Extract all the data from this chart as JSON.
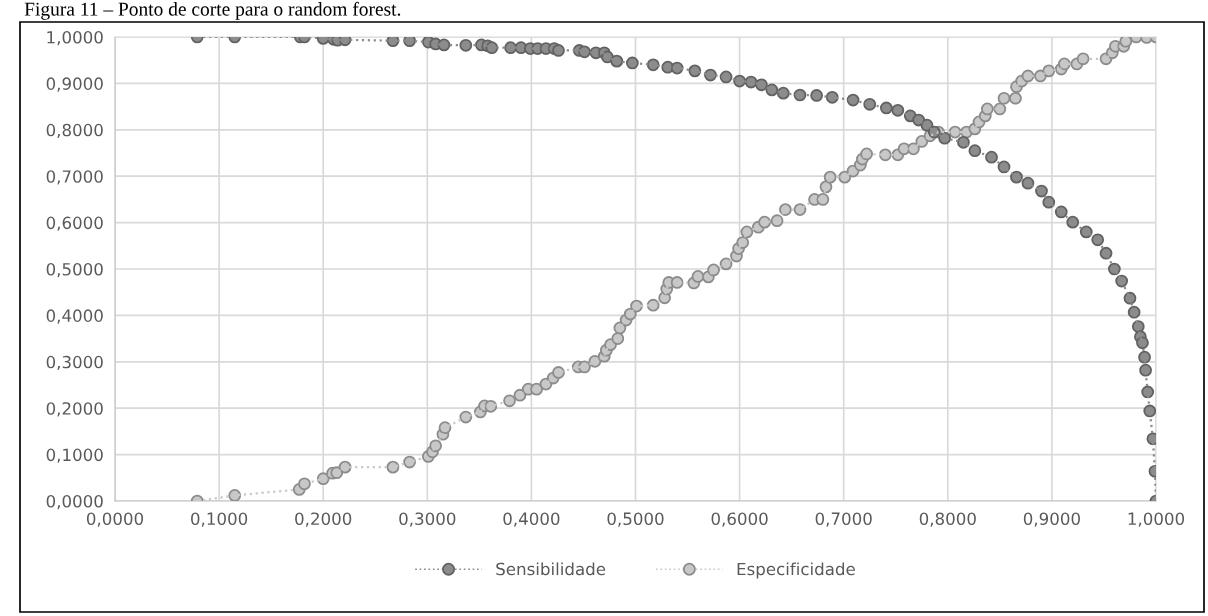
{
  "chart_data": {
    "type": "line",
    "title": "Figura 11 – Ponto de corte para o random forest.",
    "xlim": [
      0,
      1
    ],
    "ylim": [
      0,
      1
    ],
    "xticks": [
      {
        "value": 0,
        "label": "0,0000"
      },
      {
        "value": 0.1,
        "label": "0,1000"
      },
      {
        "value": 0.2,
        "label": "0,2000"
      },
      {
        "value": 0.3,
        "label": "0,3000"
      },
      {
        "value": 0.4,
        "label": "0,4000"
      },
      {
        "value": 0.5,
        "label": "0,5000"
      },
      {
        "value": 0.6,
        "label": "0,6000"
      },
      {
        "value": 0.7,
        "label": "0,7000"
      },
      {
        "value": 0.8,
        "label": "0,8000"
      },
      {
        "value": 0.9,
        "label": "0,9000"
      },
      {
        "value": 1,
        "label": "1,0000"
      }
    ],
    "yticks": [
      {
        "value": 0,
        "label": "0,0000"
      },
      {
        "value": 0.1,
        "label": "0,1000"
      },
      {
        "value": 0.2,
        "label": "0,2000"
      },
      {
        "value": 0.3,
        "label": "0,3000"
      },
      {
        "value": 0.4,
        "label": "0,4000"
      },
      {
        "value": 0.5,
        "label": "0,5000"
      },
      {
        "value": 0.6,
        "label": "0,6000"
      },
      {
        "value": 0.7,
        "label": "0,7000"
      },
      {
        "value": 0.8,
        "label": "0,8000"
      },
      {
        "value": 0.9,
        "label": "0,9000"
      },
      {
        "value": 1,
        "label": "1,0000"
      }
    ],
    "grid": true,
    "legend": "bottom",
    "marker": "circle",
    "line_style": "dotted",
    "series": [
      {
        "name": "Sensibilidade",
        "color": "#8c8c8c",
        "x": [
          0.079,
          0.115,
          0.178,
          0.182,
          0.2,
          0.21,
          0.214,
          0.221,
          0.267,
          0.283,
          0.301,
          0.308,
          0.316,
          0.337,
          0.352,
          0.358,
          0.362,
          0.38,
          0.39,
          0.399,
          0.406,
          0.414,
          0.422,
          0.426,
          0.446,
          0.451,
          0.462,
          0.47,
          0.473,
          0.482,
          0.497,
          0.517,
          0.531,
          0.54,
          0.557,
          0.572,
          0.587,
          0.6,
          0.611,
          0.621,
          0.631,
          0.642,
          0.658,
          0.674,
          0.689,
          0.709,
          0.725,
          0.741,
          0.752,
          0.764,
          0.772,
          0.78,
          0.787,
          0.797,
          0.815,
          0.826,
          0.842,
          0.854,
          0.866,
          0.877,
          0.89,
          0.897,
          0.909,
          0.92,
          0.933,
          0.944,
          0.952,
          0.96,
          0.967,
          0.975,
          0.979,
          0.983,
          0.985,
          0.987,
          0.989,
          0.99,
          0.992,
          0.994,
          0.997,
          0.999,
          1.0
        ],
        "values": [
          1.0,
          1.0,
          1.0,
          1.0,
          0.997,
          0.995,
          0.993,
          0.994,
          0.992,
          0.992,
          0.989,
          0.985,
          0.983,
          0.982,
          0.983,
          0.981,
          0.977,
          0.977,
          0.977,
          0.975,
          0.975,
          0.975,
          0.975,
          0.971,
          0.971,
          0.968,
          0.966,
          0.966,
          0.957,
          0.948,
          0.944,
          0.94,
          0.935,
          0.933,
          0.927,
          0.918,
          0.914,
          0.905,
          0.903,
          0.897,
          0.886,
          0.879,
          0.875,
          0.874,
          0.87,
          0.864,
          0.855,
          0.847,
          0.842,
          0.83,
          0.821,
          0.81,
          0.795,
          0.782,
          0.773,
          0.755,
          0.741,
          0.72,
          0.698,
          0.685,
          0.668,
          0.644,
          0.623,
          0.601,
          0.58,
          0.563,
          0.534,
          0.5,
          0.474,
          0.437,
          0.407,
          0.376,
          0.354,
          0.341,
          0.31,
          0.282,
          0.235,
          0.194,
          0.134,
          0.064,
          0.0
        ]
      },
      {
        "name": "Especificidade",
        "color": "#c8c8c8",
        "x": [
          0.079,
          0.115,
          0.177,
          0.182,
          0.2,
          0.209,
          0.213,
          0.221,
          0.267,
          0.283,
          0.301,
          0.305,
          0.308,
          0.315,
          0.317,
          0.337,
          0.351,
          0.355,
          0.361,
          0.379,
          0.389,
          0.397,
          0.405,
          0.414,
          0.421,
          0.426,
          0.445,
          0.451,
          0.461,
          0.47,
          0.472,
          0.476,
          0.483,
          0.485,
          0.491,
          0.495,
          0.501,
          0.517,
          0.528,
          0.53,
          0.532,
          0.54,
          0.556,
          0.56,
          0.57,
          0.575,
          0.587,
          0.597,
          0.599,
          0.603,
          0.607,
          0.618,
          0.624,
          0.636,
          0.644,
          0.658,
          0.672,
          0.68,
          0.683,
          0.687,
          0.701,
          0.709,
          0.716,
          0.718,
          0.722,
          0.74,
          0.752,
          0.758,
          0.767,
          0.775,
          0.783,
          0.791,
          0.807,
          0.818,
          0.826,
          0.83,
          0.836,
          0.838,
          0.85,
          0.854,
          0.865,
          0.866,
          0.871,
          0.877,
          0.889,
          0.897,
          0.909,
          0.912,
          0.924,
          0.93,
          0.952,
          0.958,
          0.961,
          0.969,
          0.971,
          0.981,
          0.991,
          1.0
        ],
        "values": [
          0.0,
          0.012,
          0.025,
          0.037,
          0.048,
          0.06,
          0.061,
          0.073,
          0.073,
          0.084,
          0.096,
          0.106,
          0.119,
          0.144,
          0.158,
          0.181,
          0.192,
          0.205,
          0.204,
          0.216,
          0.228,
          0.241,
          0.241,
          0.252,
          0.265,
          0.277,
          0.289,
          0.289,
          0.301,
          0.312,
          0.325,
          0.337,
          0.35,
          0.373,
          0.39,
          0.403,
          0.42,
          0.422,
          0.438,
          0.457,
          0.471,
          0.471,
          0.47,
          0.484,
          0.483,
          0.498,
          0.511,
          0.528,
          0.544,
          0.557,
          0.58,
          0.59,
          0.601,
          0.604,
          0.628,
          0.628,
          0.65,
          0.65,
          0.677,
          0.698,
          0.698,
          0.711,
          0.724,
          0.737,
          0.748,
          0.746,
          0.746,
          0.759,
          0.759,
          0.775,
          0.787,
          0.795,
          0.795,
          0.795,
          0.802,
          0.817,
          0.83,
          0.845,
          0.845,
          0.868,
          0.868,
          0.893,
          0.905,
          0.916,
          0.916,
          0.927,
          0.931,
          0.942,
          0.942,
          0.953,
          0.953,
          0.966,
          0.98,
          0.98,
          0.991,
          1.0,
          0.999,
          1.0
        ]
      }
    ]
  }
}
